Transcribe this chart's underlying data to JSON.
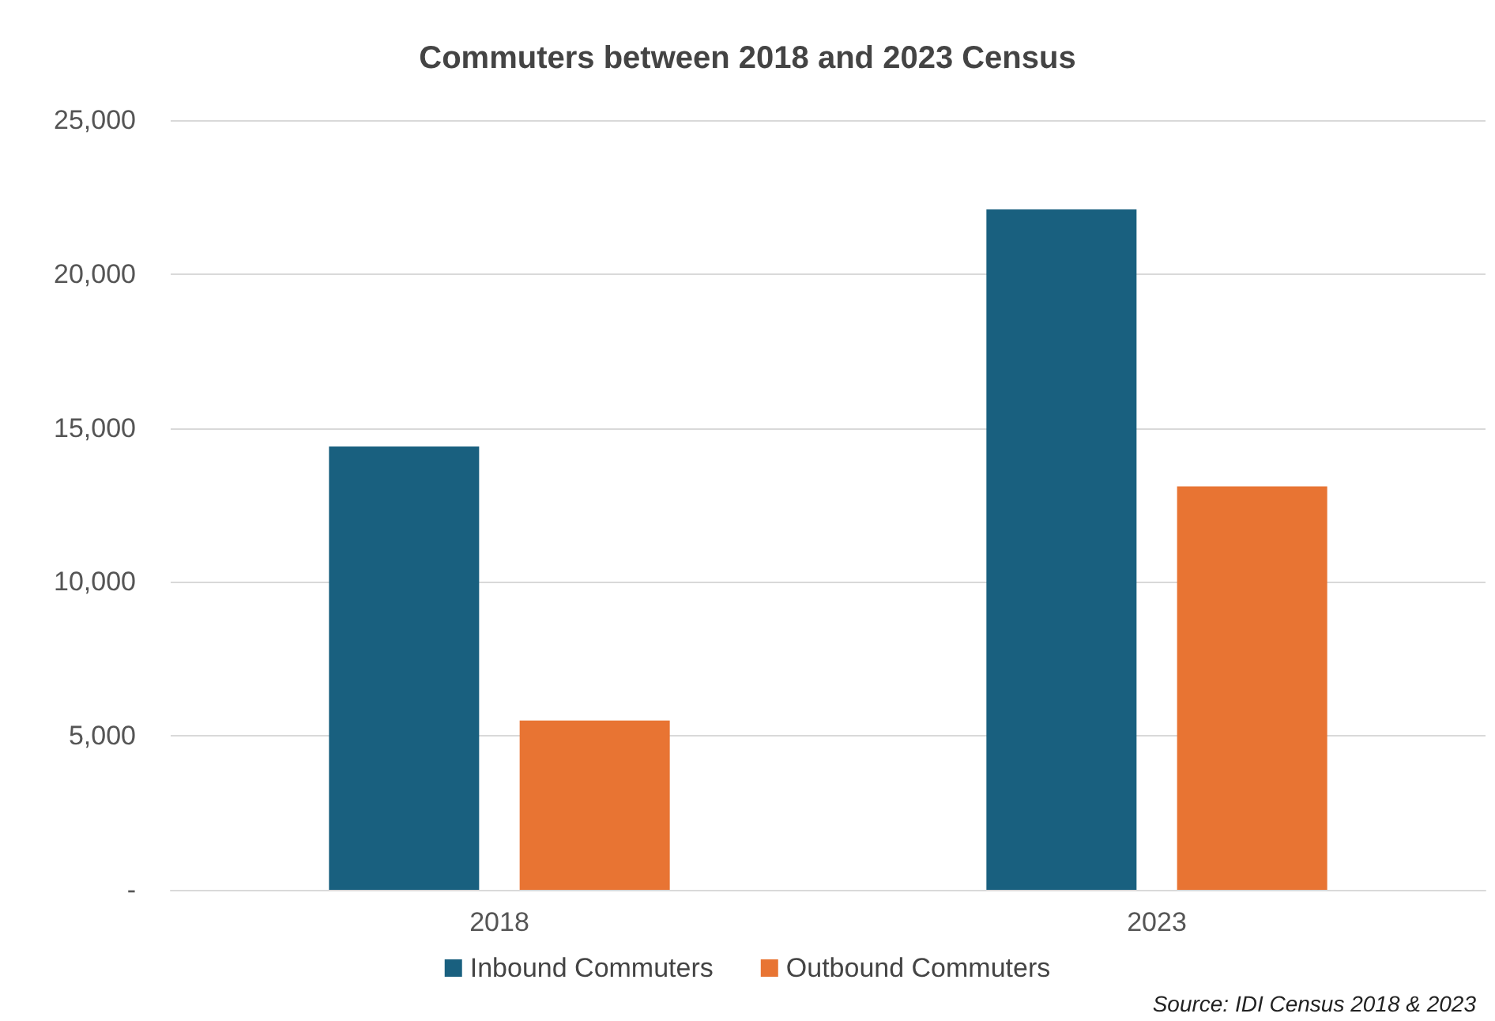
{
  "chart_data": {
    "type": "bar",
    "title": "Commuters between 2018 and 2023 Census",
    "categories": [
      "2018",
      "2023"
    ],
    "series": [
      {
        "name": "Inbound Commuters",
        "color": "#19607f",
        "values": [
          14400,
          22100
        ]
      },
      {
        "name": "Outbound Commuters",
        "color": "#e87433",
        "values": [
          5500,
          13100
        ]
      }
    ],
    "ylim": [
      0,
      25000
    ],
    "yticks": [
      {
        "value": 0,
        "label": "-"
      },
      {
        "value": 5000,
        "label": "5,000"
      },
      {
        "value": 10000,
        "label": "10,000"
      },
      {
        "value": 15000,
        "label": "15,000"
      },
      {
        "value": 20000,
        "label": "20,000"
      },
      {
        "value": 25000,
        "label": "25,000"
      }
    ],
    "grid": "y",
    "legend": "bottom",
    "annotations": [
      "Source: IDI Census 2018 & 2023"
    ]
  }
}
